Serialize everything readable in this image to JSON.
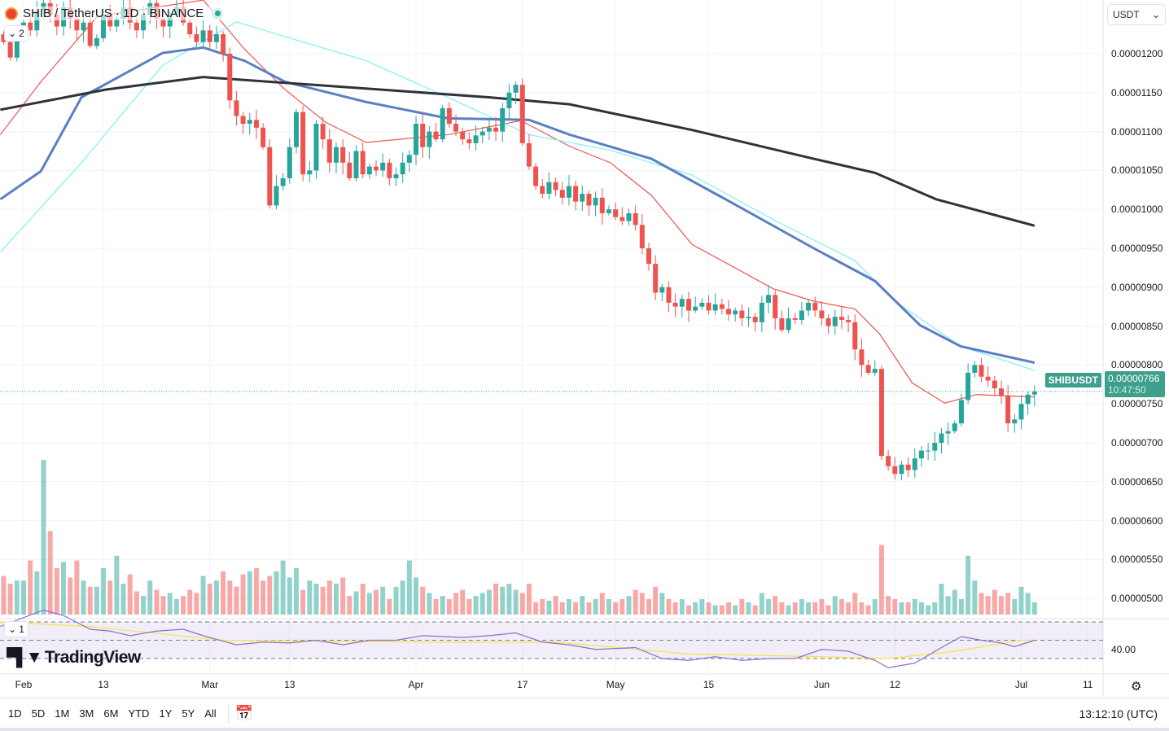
{
  "header": {
    "symbol": "SHIB",
    "quote": "TetherUS",
    "interval": "1D",
    "exchange": "BINANCE",
    "title": "SHIB / TetherUS · 1D · BINANCE",
    "collapse_main": "2",
    "collapse_rsi": "1"
  },
  "currency_select": "USDT",
  "price_tag": {
    "symbol": "SHIBUSDT",
    "price": "0.00000766",
    "countdown": "10:47:50"
  },
  "rsi_label": "40.00",
  "logo": "TradingView",
  "toolbar": {
    "ranges": [
      "1D",
      "5D",
      "1M",
      "3M",
      "6M",
      "YTD",
      "1Y",
      "5Y",
      "All"
    ],
    "clock": "13:12:10 (UTC)"
  },
  "colors": {
    "up": "#26a69a",
    "down": "#ef5350",
    "ma_red": "#f05350",
    "ma_cyan": "#7ff0f0",
    "ma_blue": "#5b7fc4",
    "ma_black": "#2f323b",
    "rsi": "#8a6dd1",
    "rsi_ma": "#f5e642"
  },
  "chart_data": {
    "type": "candlestick",
    "title": "SHIB / TetherUS · 1D · BINANCE",
    "units": "1e-8 USDT",
    "first_day_index": -3,
    "day_index_note": "day 0 = Feb 1",
    "ylim": [
      460,
      1270
    ],
    "y_ticks": [
      "0.00001200",
      "0.00001150",
      "0.00001100",
      "0.00001050",
      "0.00001000",
      "0.00000950",
      "0.00000900",
      "0.00000850",
      "0.00000800",
      "0.00000750",
      "0.00000700",
      "0.00000650",
      "0.00000600",
      "0.00000550",
      "0.00000500"
    ],
    "y_tick_values": [
      1200,
      1150,
      1100,
      1050,
      1000,
      950,
      900,
      850,
      800,
      750,
      700,
      650,
      600,
      550,
      500
    ],
    "x_ticks": [
      {
        "label": "Feb",
        "day": 0
      },
      {
        "label": "13",
        "day": 12
      },
      {
        "label": "Mar",
        "day": 28
      },
      {
        "label": "13",
        "day": 40
      },
      {
        "label": "Apr",
        "day": 59
      },
      {
        "label": "17",
        "day": 75
      },
      {
        "label": "May",
        "day": 89
      },
      {
        "label": "15",
        "day": 103
      },
      {
        "label": "Jun",
        "day": 120
      },
      {
        "label": "12",
        "day": 131
      },
      {
        "label": "Jul",
        "day": 150
      },
      {
        "label": "11",
        "day": 160
      }
    ],
    "closes": [
      1215,
      1195,
      1225,
      1240,
      1230,
      1255,
      1265,
      1250,
      1235,
      1260,
      1245,
      1230,
      1240,
      1210,
      1220,
      1250,
      1235,
      1245,
      1260,
      1240,
      1230,
      1250,
      1265,
      1245,
      1235,
      1250,
      1260,
      1240,
      1225,
      1215,
      1230,
      1215,
      1225,
      1200,
      1140,
      1120,
      1110,
      1115,
      1105,
      1080,
      1005,
      1030,
      1040,
      1080,
      1125,
      1045,
      1050,
      1110,
      1090,
      1060,
      1080,
      1060,
      1040,
      1075,
      1045,
      1055,
      1050,
      1060,
      1040,
      1045,
      1060,
      1070,
      1110,
      1080,
      1100,
      1090,
      1130,
      1110,
      1100,
      1090,
      1085,
      1095,
      1100,
      1105,
      1100,
      1130,
      1150,
      1160,
      1085,
      1055,
      1030,
      1020,
      1035,
      1025,
      1015,
      1030,
      1010,
      1020,
      1005,
      1015,
      995,
      1000,
      990,
      985,
      995,
      980,
      950,
      930,
      893,
      900,
      880,
      875,
      885,
      870,
      875,
      880,
      870,
      878,
      872,
      865,
      870,
      860,
      862,
      855,
      880,
      890,
      860,
      845,
      860,
      858,
      870,
      880,
      870,
      860,
      850,
      862,
      858,
      855,
      820,
      800,
      790,
      795,
      683,
      670,
      660,
      672,
      665,
      680,
      690,
      690,
      700,
      712,
      715,
      725,
      755,
      790,
      800,
      785,
      780,
      770,
      760,
      725,
      730,
      750,
      762,
      766
    ],
    "volume_relative": [
      25,
      20,
      22,
      22,
      35,
      28,
      100,
      54,
      30,
      34,
      24,
      35,
      22,
      18,
      18,
      30,
      22,
      38,
      20,
      26,
      15,
      12,
      22,
      16,
      12,
      14,
      10,
      12,
      16,
      14,
      25,
      20,
      22,
      28,
      22,
      18,
      26,
      28,
      30,
      22,
      25,
      28,
      35,
      24,
      30,
      16,
      22,
      20,
      18,
      22,
      20,
      24,
      12,
      15,
      20,
      14,
      16,
      18,
      10,
      18,
      22,
      35,
      24,
      18,
      14,
      10,
      12,
      10,
      14,
      16,
      10,
      12,
      14,
      16,
      20,
      18,
      20,
      16,
      14,
      20,
      8,
      10,
      9,
      12,
      8,
      10,
      8,
      12,
      8,
      10,
      14,
      10,
      8,
      10,
      12,
      16,
      14,
      10,
      18,
      14,
      10,
      8,
      10,
      6,
      8,
      10,
      8,
      6,
      6,
      8,
      6,
      10,
      8,
      6,
      14,
      10,
      12,
      8,
      6,
      8,
      10,
      8,
      8,
      10,
      6,
      12,
      10,
      8,
      14,
      8,
      6,
      10,
      45,
      12,
      10,
      8,
      8,
      10,
      8,
      6,
      8,
      20,
      12,
      16,
      10,
      38,
      22,
      14,
      12,
      16,
      12,
      14,
      10,
      18,
      14,
      8
    ],
    "moving_averages": [
      {
        "name": "ma-red",
        "color": "#f05350",
        "points": [
          [
            -3.5,
            1096
          ],
          [
            2.6,
            1164
          ],
          [
            11.1,
            1248
          ],
          [
            27,
            1269
          ],
          [
            33.2,
            1206
          ],
          [
            39.3,
            1154
          ],
          [
            45.4,
            1112
          ],
          [
            51.5,
            1086
          ],
          [
            63.8,
            1096
          ],
          [
            74.8,
            1114
          ],
          [
            82.1,
            1081
          ],
          [
            88.2,
            1060
          ],
          [
            94.4,
            1018
          ],
          [
            100.5,
            955
          ],
          [
            112.7,
            898
          ],
          [
            118.8,
            882
          ],
          [
            125,
            872
          ],
          [
            128.7,
            840
          ],
          [
            133.6,
            777
          ],
          [
            138.5,
            751
          ],
          [
            143.3,
            762
          ],
          [
            152,
            759
          ]
        ]
      },
      {
        "name": "ma-cyan",
        "color": "#7ff0f0",
        "points": [
          [
            -3.5,
            945
          ],
          [
            8.7,
            1060
          ],
          [
            20.9,
            1185
          ],
          [
            32,
            1241
          ],
          [
            39.3,
            1222
          ],
          [
            51.5,
            1191
          ],
          [
            63.8,
            1144
          ],
          [
            76,
            1096
          ],
          [
            88.2,
            1076
          ],
          [
            100.5,
            1044
          ],
          [
            112.7,
            987
          ],
          [
            125,
            934
          ],
          [
            131,
            882
          ],
          [
            140.9,
            824
          ],
          [
            152,
            793
          ]
        ]
      },
      {
        "name": "ma-blue",
        "color": "#5b7fc4",
        "points": [
          [
            -3.5,
            1013
          ],
          [
            2.6,
            1049
          ],
          [
            8.7,
            1144
          ],
          [
            20.9,
            1201
          ],
          [
            27,
            1208
          ],
          [
            33.2,
            1191
          ],
          [
            39.3,
            1164
          ],
          [
            51.5,
            1138
          ],
          [
            63.8,
            1117
          ],
          [
            76,
            1115
          ],
          [
            82.1,
            1096
          ],
          [
            94.4,
            1065
          ],
          [
            106.6,
            1008
          ],
          [
            118.8,
            950
          ],
          [
            128,
            908
          ],
          [
            134.8,
            851
          ],
          [
            140.9,
            824
          ],
          [
            152,
            803
          ]
        ]
      },
      {
        "name": "ma-black",
        "color": "#2f323b",
        "points": [
          [
            -3.5,
            1128
          ],
          [
            12.4,
            1154
          ],
          [
            27,
            1170
          ],
          [
            45.4,
            1159
          ],
          [
            69.9,
            1144
          ],
          [
            82.1,
            1135
          ],
          [
            100.5,
            1102
          ],
          [
            118.8,
            1065
          ],
          [
            128,
            1047
          ],
          [
            137.2,
            1013
          ],
          [
            152,
            979
          ]
        ]
      }
    ],
    "rsi": {
      "levels": [
        70,
        50,
        30
      ],
      "line": [
        [
          -3.5,
          65
        ],
        [
          3,
          83
        ],
        [
          6,
          77
        ],
        [
          10,
          62
        ],
        [
          13,
          60
        ],
        [
          16,
          55
        ],
        [
          20,
          60
        ],
        [
          24,
          62
        ],
        [
          27,
          55
        ],
        [
          32,
          45
        ],
        [
          36,
          48
        ],
        [
          40,
          47
        ],
        [
          44,
          50
        ],
        [
          48,
          45
        ],
        [
          52,
          50
        ],
        [
          56,
          50
        ],
        [
          60,
          55
        ],
        [
          66,
          53
        ],
        [
          70,
          55
        ],
        [
          74,
          58
        ],
        [
          78,
          48
        ],
        [
          82,
          45
        ],
        [
          86,
          40
        ],
        [
          92,
          42
        ],
        [
          96,
          30
        ],
        [
          100,
          28
        ],
        [
          104,
          32
        ],
        [
          108,
          28
        ],
        [
          112,
          30
        ],
        [
          116,
          30
        ],
        [
          120,
          40
        ],
        [
          124,
          38
        ],
        [
          128,
          28
        ],
        [
          130,
          20
        ],
        [
          134,
          25
        ],
        [
          138,
          42
        ],
        [
          141,
          54
        ],
        [
          144,
          50
        ],
        [
          147,
          47
        ],
        [
          149,
          43
        ],
        [
          152,
          50
        ]
      ],
      "ma": [
        [
          -3.5,
          70
        ],
        [
          10,
          65
        ],
        [
          30,
          50
        ],
        [
          60,
          48
        ],
        [
          80,
          48
        ],
        [
          100,
          35
        ],
        [
          120,
          32
        ],
        [
          130,
          30
        ],
        [
          140,
          38
        ],
        [
          150,
          50
        ],
        [
          152,
          50
        ]
      ]
    }
  }
}
